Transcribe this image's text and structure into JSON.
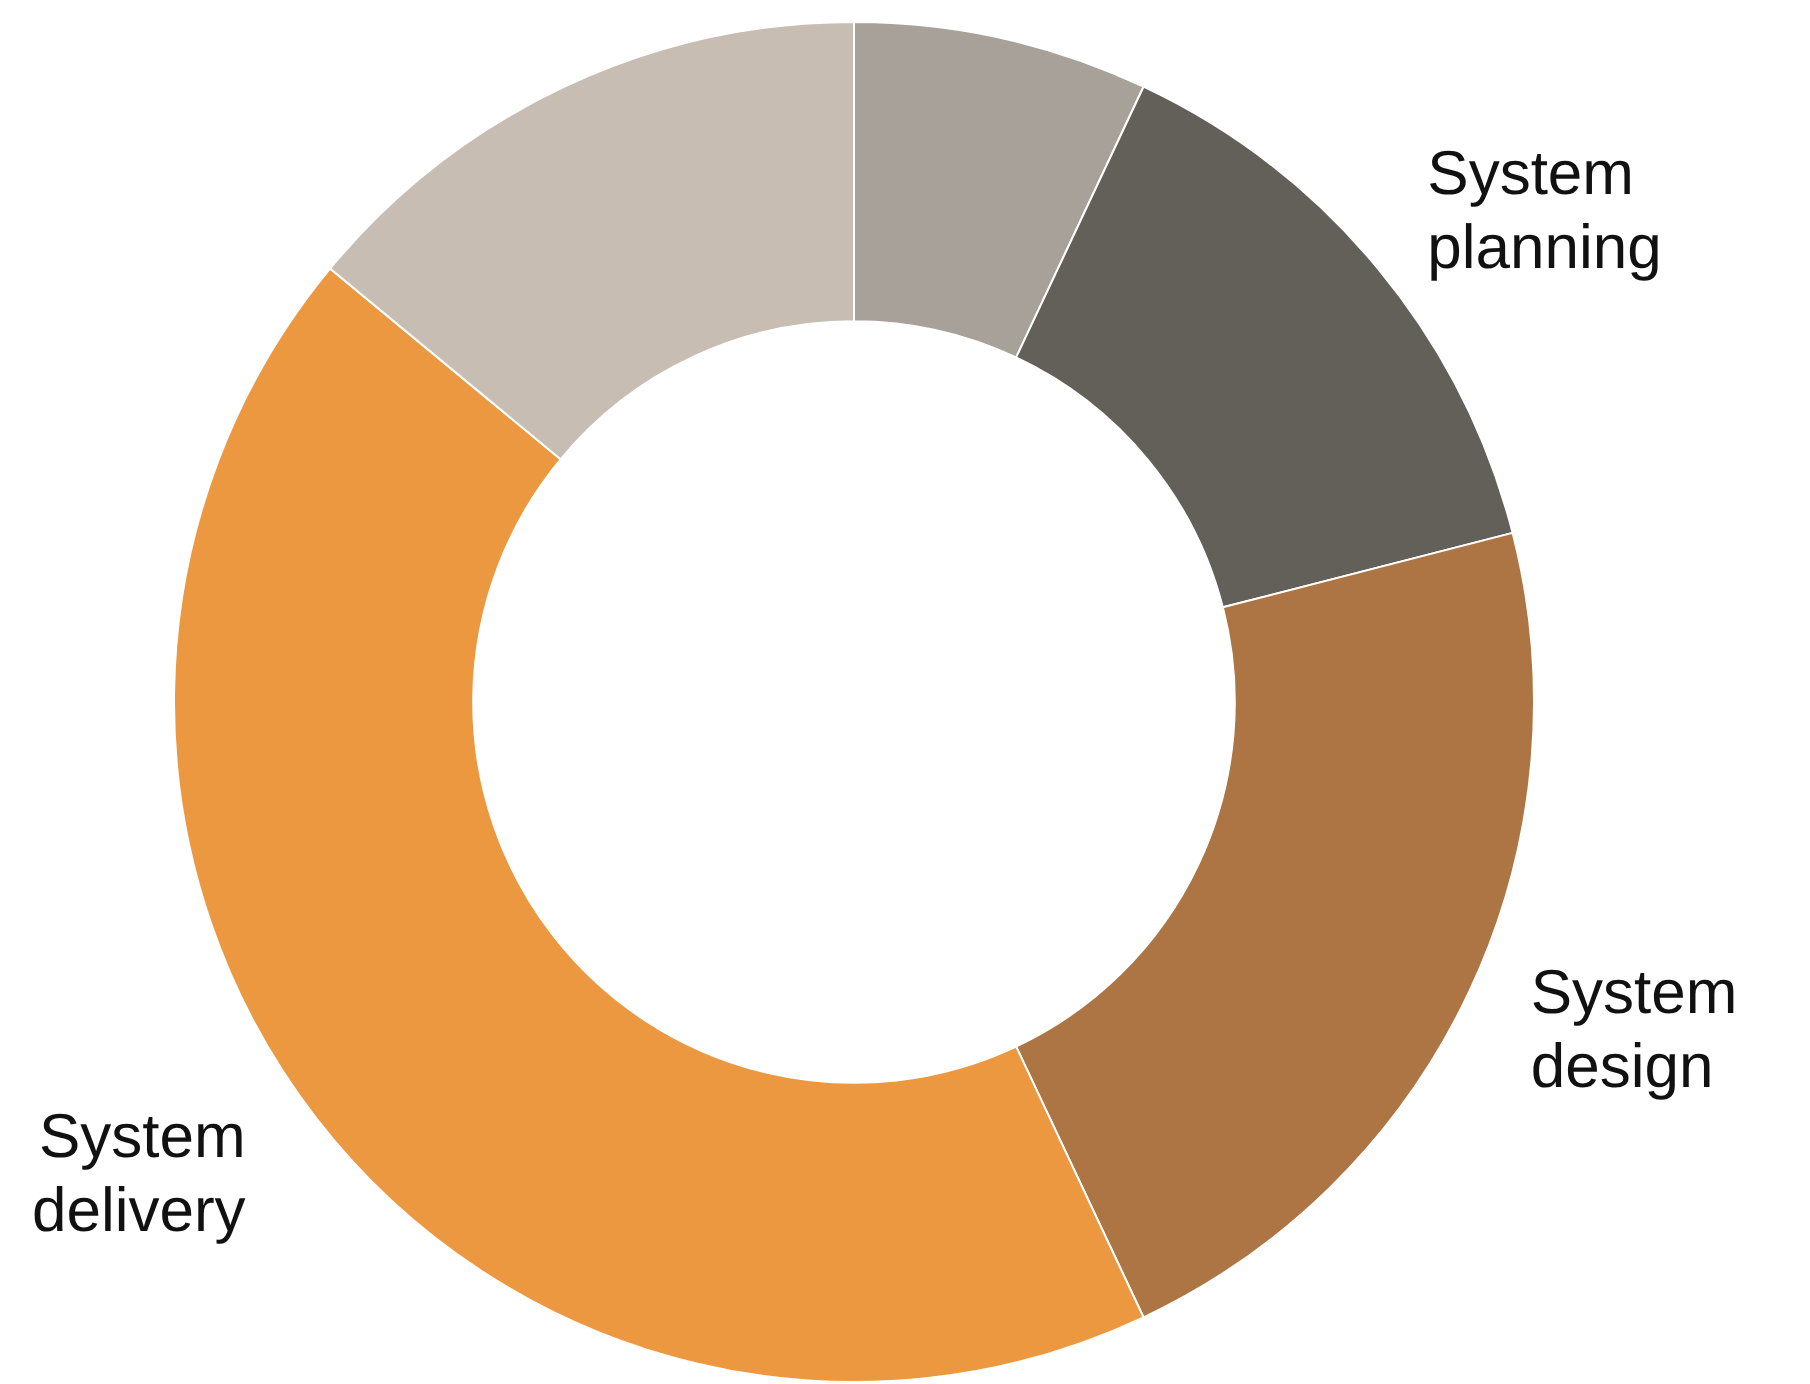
{
  "chart_data": {
    "type": "donut",
    "categories": [
      null,
      "System planning",
      "System design",
      "System delivery",
      null
    ],
    "values": [
      7,
      14,
      22,
      43,
      14
    ],
    "colors": [
      "#a8a19a",
      "#636059",
      "#ac7543",
      "#ec9841",
      "#c7bdb3"
    ]
  }
}
